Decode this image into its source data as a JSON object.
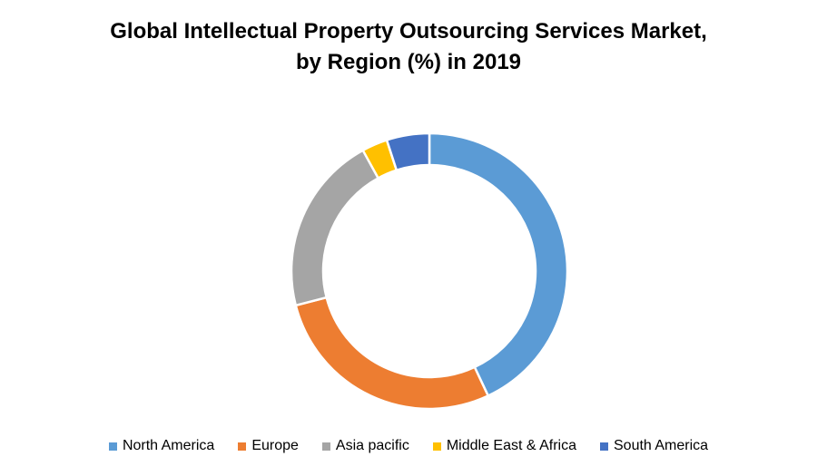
{
  "chart_data": {
    "type": "pie",
    "variant": "donut",
    "title_line1": "Global Intellectual Property Outsourcing Services Market,",
    "title_line2": "by Region (%) in 2019",
    "categories": [
      "North America",
      "Europe",
      "Asia pacific",
      "Middle East & Africa",
      "South America"
    ],
    "values": [
      43,
      28,
      21,
      3,
      5
    ],
    "colors": [
      "#5B9BD5",
      "#ED7D31",
      "#A5A5A5",
      "#FFC000",
      "#4472C4"
    ],
    "legend_position": "bottom"
  }
}
